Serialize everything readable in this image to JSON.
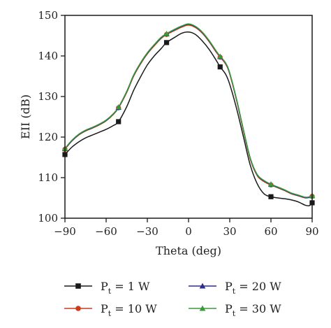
{
  "chart_data": {
    "type": "line",
    "xlabel": "Theta (deg)",
    "ylabel": "EII (dB)",
    "xlim": [
      -90,
      90
    ],
    "ylim": [
      100,
      150
    ],
    "xticks": [
      -90,
      -60,
      -30,
      0,
      30,
      60,
      90
    ],
    "yticks": [
      100,
      110,
      120,
      130,
      140,
      150
    ],
    "grid": false,
    "legend_position": "bottom",
    "series": [
      {
        "name": "P_t = 1 W",
        "legend_main": "P",
        "legend_sub": "t",
        "legend_rest": " = 1 W",
        "color": "#1a1a1a",
        "marker": "square",
        "x": [
          -90,
          -85,
          -80,
          -75,
          -70,
          -65,
          -60,
          -55,
          -51,
          -45,
          -40,
          -35,
          -30,
          -25,
          -20,
          -16,
          -10,
          -5,
          0,
          5,
          10,
          15,
          20,
          23,
          27,
          30,
          35,
          40,
          45,
          50,
          55,
          60,
          65,
          70,
          75,
          80,
          85,
          88,
          90
        ],
        "y": [
          115.7,
          117.5,
          118.8,
          119.8,
          120.5,
          121.2,
          121.9,
          122.8,
          123.8,
          127.5,
          131.5,
          134.8,
          137.8,
          140.0,
          141.8,
          143.3,
          144.6,
          145.6,
          145.9,
          145.3,
          143.7,
          141.6,
          139.0,
          137.3,
          135.5,
          133.0,
          127.0,
          120.0,
          113.0,
          108.5,
          106.0,
          105.3,
          105.0,
          104.8,
          104.5,
          104.0,
          103.2,
          103.1,
          103.8
        ],
        "marker_points": [
          [
            -90,
            115.7
          ],
          [
            -51,
            123.8
          ],
          [
            -16,
            143.3
          ],
          [
            23,
            137.3
          ],
          [
            60,
            105.3
          ],
          [
            90,
            103.8
          ]
        ]
      },
      {
        "name": "P_t = 10 W",
        "legend_main": "P",
        "legend_sub": "t",
        "legend_rest": " = 10 W",
        "color": "#cc3a1a",
        "marker": "circle",
        "x": [
          -90,
          -85,
          -80,
          -75,
          -70,
          -65,
          -60,
          -55,
          -51,
          -45,
          -40,
          -35,
          -30,
          -25,
          -20,
          -16,
          -10,
          -5,
          0,
          5,
          10,
          15,
          20,
          23,
          27,
          30,
          35,
          40,
          45,
          50,
          55,
          60,
          65,
          70,
          75,
          80,
          85,
          88,
          90
        ],
        "y": [
          117.0,
          119.0,
          120.5,
          121.5,
          122.2,
          123.0,
          124.0,
          125.5,
          127.2,
          131.0,
          135.0,
          138.0,
          140.5,
          142.5,
          144.3,
          145.3,
          146.3,
          147.1,
          147.6,
          147.0,
          145.6,
          143.5,
          141.0,
          139.7,
          138.0,
          135.5,
          129.0,
          121.5,
          114.5,
          110.5,
          109.0,
          108.2,
          107.5,
          106.8,
          106.0,
          105.5,
          105.0,
          105.1,
          105.4
        ],
        "marker_points": [
          [
            -90,
            117.0
          ],
          [
            -51,
            127.2
          ],
          [
            -16,
            145.3
          ],
          [
            23,
            139.7
          ],
          [
            60,
            108.2
          ],
          [
            90,
            105.4
          ]
        ]
      },
      {
        "name": "P_t = 20 W",
        "legend_main": "P",
        "legend_sub": "t",
        "legend_rest": " = 20 W",
        "color": "#2b2f8c",
        "marker": "triangle",
        "x": [
          -90,
          -85,
          -80,
          -75,
          -70,
          -65,
          -60,
          -55,
          -51,
          -45,
          -40,
          -35,
          -30,
          -25,
          -20,
          -16,
          -10,
          -5,
          0,
          5,
          10,
          15,
          20,
          23,
          27,
          30,
          35,
          40,
          45,
          50,
          55,
          60,
          65,
          70,
          75,
          80,
          85,
          88,
          90
        ],
        "y": [
          117.1,
          119.1,
          120.6,
          121.6,
          122.3,
          123.1,
          124.1,
          125.6,
          127.3,
          131.2,
          135.2,
          138.2,
          140.7,
          142.7,
          144.5,
          145.4,
          146.5,
          147.3,
          147.8,
          147.2,
          145.8,
          143.7,
          141.2,
          139.8,
          138.2,
          135.7,
          129.2,
          121.7,
          114.7,
          110.7,
          109.2,
          108.3,
          107.6,
          106.9,
          106.1,
          105.6,
          105.1,
          105.2,
          105.5
        ],
        "marker_points": [
          [
            -90,
            117.1
          ],
          [
            -51,
            127.3
          ],
          [
            -16,
            145.4
          ],
          [
            23,
            139.8
          ],
          [
            60,
            108.3
          ],
          [
            90,
            105.5
          ]
        ]
      },
      {
        "name": "P_t = 30 W",
        "legend_main": "P",
        "legend_sub": "t",
        "legend_rest": " = 30 W",
        "color": "#3a9a3a",
        "marker": "triangle",
        "x": [
          -90,
          -85,
          -80,
          -75,
          -70,
          -65,
          -60,
          -55,
          -51,
          -45,
          -40,
          -35,
          -30,
          -25,
          -20,
          -16,
          -10,
          -5,
          0,
          5,
          10,
          15,
          20,
          23,
          27,
          30,
          35,
          40,
          45,
          50,
          55,
          60,
          65,
          70,
          75,
          80,
          85,
          88,
          90
        ],
        "y": [
          117.2,
          119.2,
          120.7,
          121.7,
          122.4,
          123.2,
          124.2,
          125.7,
          127.4,
          131.3,
          135.3,
          138.3,
          140.8,
          142.8,
          144.6,
          145.5,
          146.6,
          147.4,
          147.9,
          147.3,
          145.9,
          143.8,
          141.3,
          139.9,
          138.3,
          135.8,
          129.3,
          121.8,
          114.8,
          110.8,
          109.3,
          108.4,
          107.7,
          107.0,
          106.2,
          105.7,
          105.2,
          105.3,
          105.6
        ],
        "marker_points": [
          [
            -90,
            117.2
          ],
          [
            -51,
            127.4
          ],
          [
            -16,
            145.5
          ],
          [
            23,
            139.9
          ],
          [
            60,
            108.4
          ],
          [
            90,
            105.6
          ]
        ]
      }
    ]
  }
}
